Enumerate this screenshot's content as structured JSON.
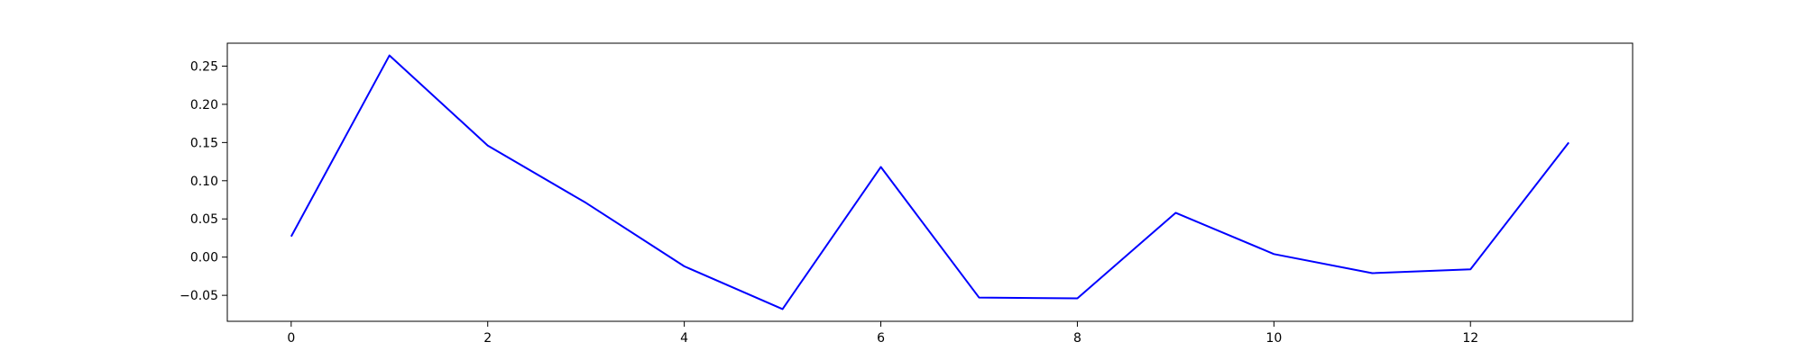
{
  "chart_data": {
    "type": "line",
    "x": [
      0,
      1,
      2,
      3,
      4,
      5,
      6,
      7,
      8,
      9,
      10,
      11,
      12,
      13
    ],
    "series": [
      {
        "values": [
          0.027,
          0.264,
          0.146,
          0.071,
          -0.012,
          -0.068,
          0.118,
          -0.053,
          -0.054,
          0.058,
          0.004,
          -0.021,
          -0.016,
          0.15
        ],
        "color": "#0000ff"
      }
    ],
    "title": "",
    "xlabel": "",
    "ylabel": "",
    "xlim": [
      -0.65,
      13.65
    ],
    "ylim": [
      -0.084,
      0.28
    ],
    "xticks": [
      0,
      2,
      4,
      6,
      8,
      10,
      12
    ],
    "xtick_labels": [
      "0",
      "2",
      "4",
      "6",
      "8",
      "10",
      "12"
    ],
    "yticks": [
      -0.05,
      0.0,
      0.05,
      0.1,
      0.15,
      0.2,
      0.25
    ],
    "ytick_labels": [
      "−0.05",
      "0.00",
      "0.05",
      "0.10",
      "0.15",
      "0.20",
      "0.25"
    ],
    "grid": false,
    "legend": false
  }
}
